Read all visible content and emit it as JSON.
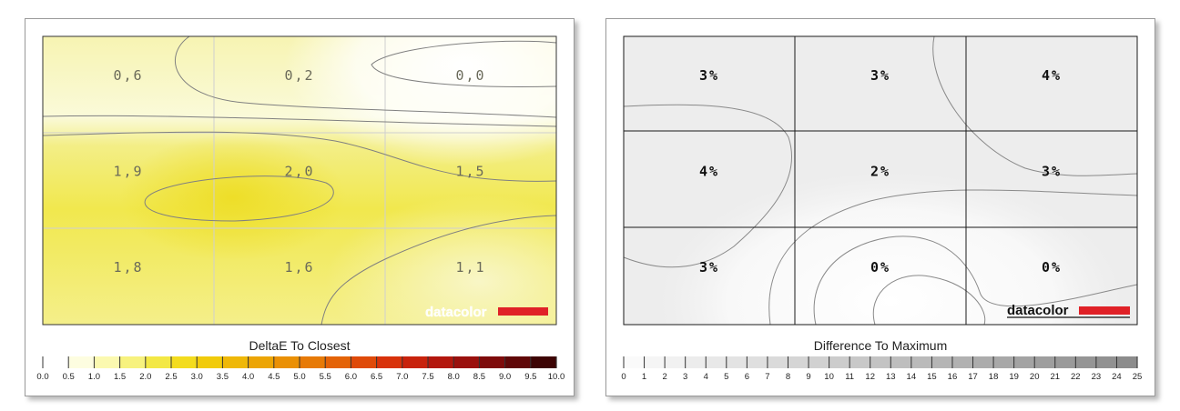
{
  "chart_data": [
    {
      "type": "heatmap",
      "title": "DeltaE To Closest",
      "rows": 3,
      "cols": 3,
      "values": [
        [
          "0,6",
          "0,2",
          "0,0"
        ],
        [
          "1,9",
          "2,0",
          "1,5"
        ],
        [
          "1,8",
          "1,6",
          "1,1"
        ]
      ],
      "numeric_values": [
        [
          0.6,
          0.2,
          0.0
        ],
        [
          1.9,
          2.0,
          1.5
        ],
        [
          1.8,
          1.6,
          1.1
        ]
      ],
      "scale_labels": [
        "0.0",
        "0.5",
        "1.0",
        "1.5",
        "2.0",
        "2.5",
        "3.0",
        "3.5",
        "4.0",
        "4.5",
        "5.0",
        "5.5",
        "6.0",
        "6.5",
        "7.0",
        "7.5",
        "8.0",
        "8.5",
        "9.0",
        "9.5",
        "10.0"
      ],
      "scale_colors": [
        "#ffffff",
        "#fdfde0",
        "#fbf9b0",
        "#f7f27e",
        "#f3e845",
        "#f3dc1e",
        "#f1cb0b",
        "#efb808",
        "#eca505",
        "#ea9005",
        "#e77a06",
        "#e46307",
        "#df4a09",
        "#d8320a",
        "#c8220c",
        "#b3170d",
        "#9a100d",
        "#7e0b0b",
        "#600708",
        "#3d0404",
        "#120000"
      ],
      "ylim": [
        0,
        10
      ],
      "brand": "datacolor",
      "brand_color": "#e02127"
    },
    {
      "type": "heatmap",
      "title": "Difference To Maximum",
      "rows": 3,
      "cols": 3,
      "values": [
        [
          "3%",
          "3%",
          "4%"
        ],
        [
          "4%",
          "2%",
          "3%"
        ],
        [
          "3%",
          "0%",
          "0%"
        ]
      ],
      "numeric_values": [
        [
          3,
          3,
          4
        ],
        [
          4,
          2,
          3
        ],
        [
          3,
          0,
          0
        ]
      ],
      "scale_labels": [
        "0",
        "1",
        "2",
        "3",
        "4",
        "5",
        "6",
        "7",
        "8",
        "9",
        "10",
        "11",
        "12",
        "13",
        "14",
        "15",
        "16",
        "17",
        "18",
        "19",
        "20",
        "21",
        "22",
        "23",
        "24",
        "25"
      ],
      "ylim": [
        0,
        25
      ],
      "brand": "datacolor",
      "brand_color": "#e02127"
    }
  ]
}
